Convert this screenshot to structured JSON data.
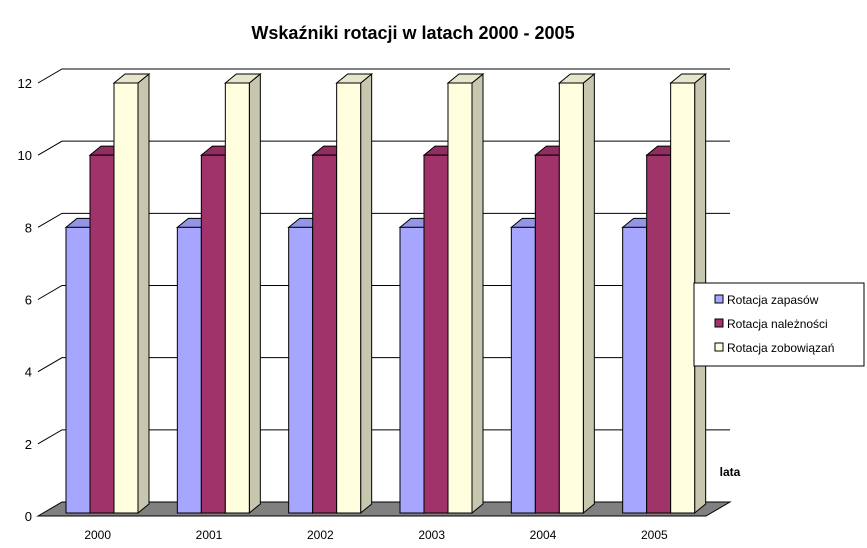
{
  "chart_data": {
    "type": "bar",
    "title": "Wskaźniki rotacji w latach 2000 - 2005",
    "xlabel": "lata",
    "ylabel": "",
    "ylim": [
      0,
      12
    ],
    "yticks": [
      0,
      2,
      4,
      6,
      8,
      10,
      12
    ],
    "categories": [
      "2000",
      "2001",
      "2002",
      "2003",
      "2004",
      "2005"
    ],
    "series": [
      {
        "name": "Rotacja zapasów",
        "values": [
          8,
          8,
          8,
          8,
          8,
          8
        ],
        "color": "#a6a6ff"
      },
      {
        "name": "Rotacja należności",
        "values": [
          10,
          10,
          10,
          10,
          10,
          10
        ],
        "color": "#a0336a"
      },
      {
        "name": "Rotacja zobowiązań",
        "values": [
          12,
          12,
          12,
          12,
          12,
          12
        ],
        "color": "#ffffe0"
      }
    ],
    "grid": true,
    "legend_position": "right",
    "three_d": true,
    "floor_color": "#808080"
  }
}
